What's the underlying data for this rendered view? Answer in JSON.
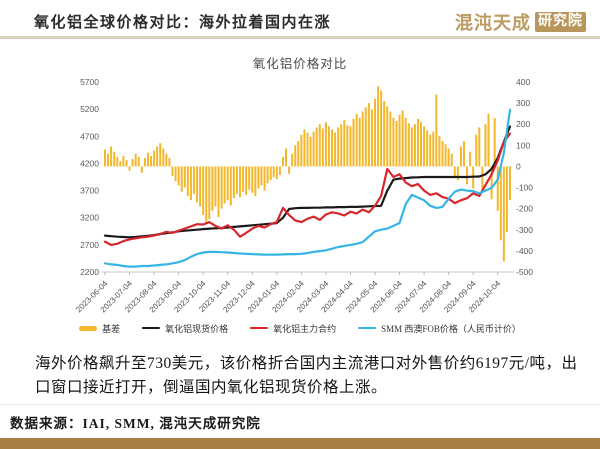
{
  "header": {
    "title": "氧化铝全球价格对比：海外拉着国内在涨",
    "logo_brand": "混沌天成",
    "logo_badge": "研究院"
  },
  "commentary": "海外价格飙升至730美元，该价格折合国内主流港口对外售价约6197元/吨，出口窗口接近打开，倒逼国内氧化铝现货价格上涨。",
  "footer": {
    "source": "数据来源：IAI, SMM, 混沌天成研究院"
  },
  "chart_data": {
    "type": "bar+line",
    "title": "氧化铝价格对比",
    "grid": false,
    "legend_position": "bottom",
    "months_span": 16.5,
    "x_ticks": [
      "2023-06-04",
      "2023-07-04",
      "2023-08-04",
      "2023-09-04",
      "2023-10-04",
      "2023-11-04",
      "2023-12-04",
      "2024-01-04",
      "2024-02-04",
      "2024-03-04",
      "2024-04-04",
      "2024-05-04",
      "2024-06-04",
      "2024-07-04",
      "2024-08-04",
      "2024-09-04",
      "2024-10-04"
    ],
    "left_axis": {
      "min": 2200,
      "max": 5700,
      "step": 500,
      "ticks": [
        2200,
        2700,
        3200,
        3700,
        4200,
        4700,
        5200,
        5700
      ]
    },
    "right_axis": {
      "min": -500,
      "max": 400,
      "step": 100,
      "ticks": [
        -500,
        -400,
        -300,
        -200,
        -100,
        0,
        100,
        200,
        300,
        400
      ]
    },
    "series": [
      {
        "name": "基差",
        "type": "bar",
        "axis": "right",
        "color": "#f3b72b",
        "step": 0.125,
        "values": [
          80,
          60,
          95,
          70,
          45,
          25,
          50,
          30,
          -20,
          35,
          60,
          45,
          -30,
          40,
          65,
          50,
          75,
          95,
          110,
          85,
          60,
          40,
          -45,
          -70,
          -90,
          -120,
          -100,
          -140,
          -160,
          -130,
          -170,
          -190,
          -230,
          -270,
          -250,
          -210,
          -190,
          -240,
          -200,
          -175,
          -160,
          -185,
          -150,
          -130,
          -145,
          -120,
          -135,
          -110,
          -125,
          -140,
          -105,
          -90,
          -115,
          -80,
          -65,
          -50,
          -60,
          -40,
          45,
          85,
          -35,
          60,
          100,
          120,
          150,
          175,
          160,
          140,
          165,
          185,
          200,
          180,
          210,
          190,
          175,
          160,
          185,
          200,
          220,
          195,
          190,
          225,
          250,
          230,
          260,
          280,
          300,
          270,
          320,
          380,
          360,
          310,
          285,
          260,
          230,
          215,
          245,
          265,
          230,
          205,
          185,
          200,
          225,
          210,
          190,
          170,
          150,
          165,
          340,
          145,
          120,
          105,
          85,
          60,
          -45,
          -65,
          95,
          120,
          -85,
          70,
          -105,
          150,
          185,
          -125,
          200,
          250,
          -155,
          230,
          -210,
          -350,
          -450,
          -310,
          -160
        ]
      },
      {
        "name": "氧化铝现货价格",
        "type": "line",
        "axis": "left",
        "color": "#1a1a1a",
        "step": 0.25,
        "values": [
          2870,
          2860,
          2850,
          2845,
          2840,
          2845,
          2855,
          2865,
          2880,
          2900,
          2915,
          2930,
          2950,
          2960,
          2970,
          2980,
          2990,
          3000,
          3005,
          3010,
          3020,
          3030,
          3040,
          3050,
          3060,
          3070,
          3080,
          3090,
          3100,
          3200,
          3360,
          3375,
          3380,
          3380,
          3385,
          3385,
          3390,
          3390,
          3395,
          3395,
          3400,
          3400,
          3405,
          3410,
          3415,
          3420,
          3700,
          3900,
          3920,
          3930,
          3940,
          3945,
          3950,
          3950,
          3950,
          3950,
          3950,
          3950,
          3950,
          3950,
          3955,
          3960,
          4000,
          4100,
          4300,
          4600,
          4880
        ]
      },
      {
        "name": "氧化铝主力合约",
        "type": "line",
        "axis": "left",
        "color": "#d7262c",
        "step": 0.25,
        "values": [
          2760,
          2700,
          2720,
          2770,
          2800,
          2820,
          2840,
          2850,
          2870,
          2900,
          2940,
          2920,
          2960,
          3000,
          3040,
          3080,
          3075,
          3120,
          3050,
          3000,
          3060,
          2980,
          2850,
          2920,
          3000,
          3050,
          3020,
          3080,
          3120,
          3380,
          3250,
          3150,
          3120,
          3180,
          3220,
          3160,
          3260,
          3300,
          3280,
          3240,
          3310,
          3280,
          3350,
          3300,
          3420,
          3600,
          4100,
          3950,
          4000,
          3850,
          3780,
          3820,
          3700,
          3620,
          3650,
          3580,
          3550,
          3470,
          3520,
          3560,
          3650,
          3600,
          3800,
          4000,
          4250,
          4600,
          4750
        ]
      },
      {
        "name": "SMM 西澳FOB价格（人民币计价）",
        "type": "line",
        "axis": "left",
        "color": "#35b5e5",
        "step": 0.25,
        "values": [
          2360,
          2340,
          2330,
          2310,
          2300,
          2300,
          2310,
          2310,
          2320,
          2330,
          2340,
          2360,
          2380,
          2420,
          2480,
          2530,
          2560,
          2570,
          2570,
          2565,
          2560,
          2550,
          2540,
          2535,
          2530,
          2525,
          2520,
          2520,
          2520,
          2525,
          2530,
          2530,
          2535,
          2550,
          2570,
          2585,
          2600,
          2630,
          2660,
          2680,
          2700,
          2720,
          2750,
          2850,
          2950,
          2980,
          3000,
          3050,
          3100,
          3450,
          3620,
          3570,
          3520,
          3420,
          3380,
          3400,
          3550,
          3680,
          3720,
          3700,
          3690,
          3650,
          3700,
          3750,
          3900,
          4400,
          5190
        ]
      }
    ]
  }
}
